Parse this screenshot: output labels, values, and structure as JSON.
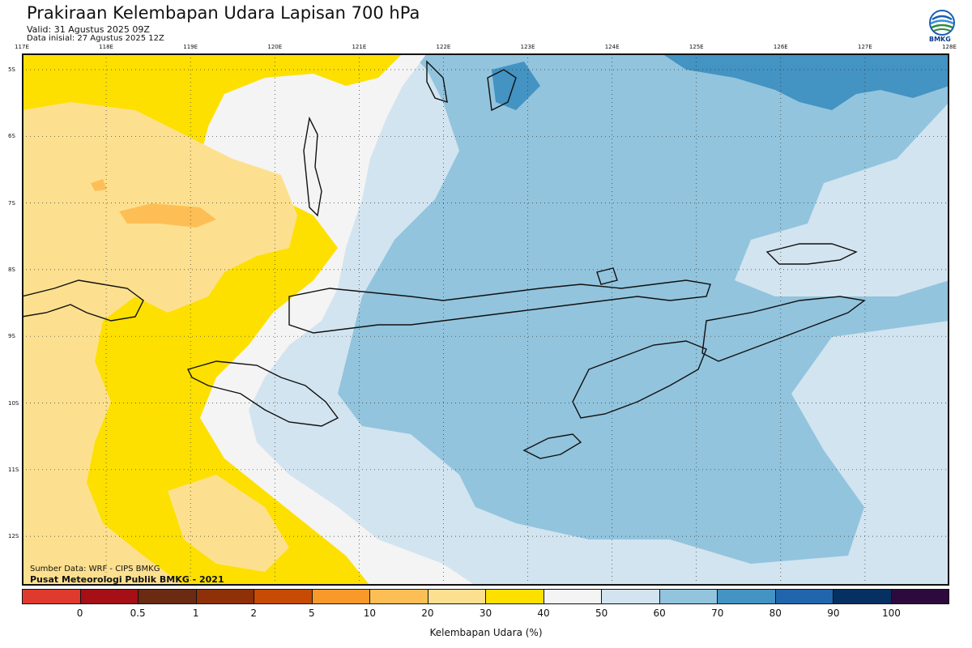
{
  "header": {
    "title": "Prakiraan Kelembapan Udara Lapisan 700 hPa",
    "valid": "Valid: 31 Agustus 2025 09Z",
    "initial": "Data inisial: 27 Agustus 2025 12Z"
  },
  "logo": {
    "text": "BMKG"
  },
  "map": {
    "longitude_labels": [
      "117E",
      "118E",
      "119E",
      "120E",
      "121E",
      "122E",
      "123E",
      "124E",
      "125E",
      "126E",
      "127E",
      "128E"
    ],
    "latitude_labels": [
      "5S",
      "6S",
      "7S",
      "8S",
      "9S",
      "10S",
      "11S",
      "12S"
    ],
    "source": "Sumber Data: WRF - CIPS BMKG",
    "center": "Pusat Meteorologi Publik BMKG - 2021"
  },
  "colorbar": {
    "colors": [
      "#e03a2f",
      "#a50f15",
      "#6b2a12",
      "#8e3008",
      "#c74a05",
      "#f79a2a",
      "#fdbf55",
      "#fde08f",
      "#fde000",
      "#f4f4f4",
      "#d2e4ef",
      "#92c4dd",
      "#4393c3",
      "#2166ac",
      "#053061",
      "#2d0a3e"
    ],
    "ticks": [
      "0",
      "0.5",
      "1",
      "2",
      "5",
      "10",
      "20",
      "30",
      "40",
      "50",
      "60",
      "70",
      "80",
      "90",
      "100"
    ],
    "label": "Kelembapan Udara (%)"
  }
}
